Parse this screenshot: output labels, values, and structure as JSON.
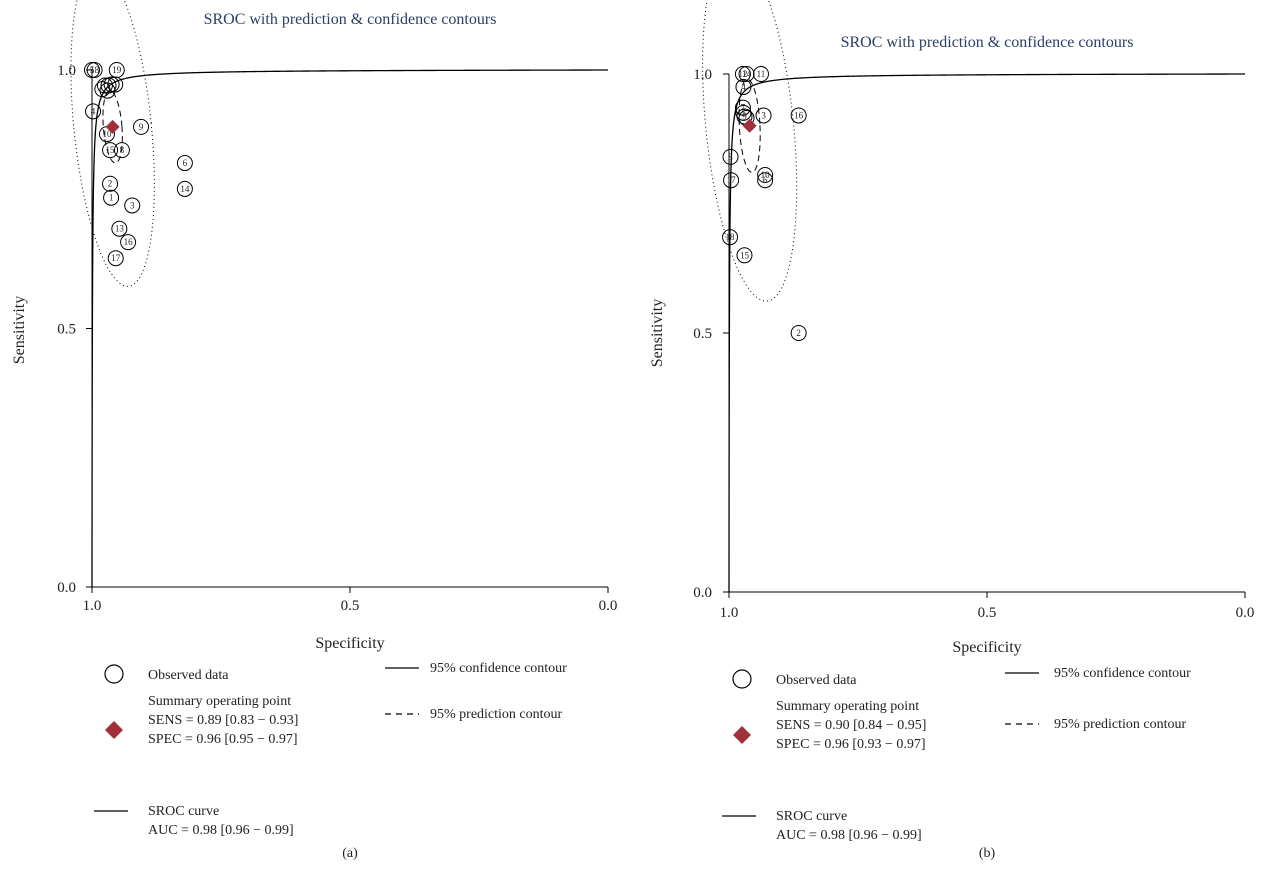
{
  "chart_data": [
    {
      "type": "scatter",
      "panel_label": "(a)",
      "title": "SROC with prediction & confidence contours",
      "xlabel": "Specificity",
      "ylabel": "Sensitivity",
      "xlim": [
        1.0,
        0.0
      ],
      "ylim": [
        0.0,
        1.0
      ],
      "x_ticks": [
        "1.0",
        "0.5",
        "0.0"
      ],
      "y_ticks": [
        "0.0",
        "0.5",
        "1.0"
      ],
      "grid": false,
      "legend_position": "bottom",
      "points": [
        {
          "id": "5",
          "spec": 1.0,
          "sens": 1.0
        },
        {
          "id": "18",
          "spec": 0.995,
          "sens": 1.0
        },
        {
          "id": "19",
          "spec": 0.952,
          "sens": 1.0
        },
        {
          "id": "",
          "spec": 0.98,
          "sens": 0.963
        },
        {
          "id": "",
          "spec": 0.975,
          "sens": 0.97
        },
        {
          "id": "",
          "spec": 0.968,
          "sens": 0.97
        },
        {
          "id": "",
          "spec": 0.962,
          "sens": 0.972
        },
        {
          "id": "",
          "spec": 0.955,
          "sens": 0.972
        },
        {
          "id": "",
          "spec": 0.97,
          "sens": 0.96
        },
        {
          "id": "4",
          "spec": 0.998,
          "sens": 0.92
        },
        {
          "id": "9",
          "spec": 0.905,
          "sens": 0.89
        },
        {
          "id": "10",
          "spec": 0.971,
          "sens": 0.876
        },
        {
          "id": "15",
          "spec": 0.965,
          "sens": 0.845
        },
        {
          "id": "8",
          "spec": 0.942,
          "sens": 0.845
        },
        {
          "id": "6",
          "spec": 0.82,
          "sens": 0.82
        },
        {
          "id": "2",
          "spec": 0.965,
          "sens": 0.78
        },
        {
          "id": "14",
          "spec": 0.82,
          "sens": 0.77
        },
        {
          "id": "1",
          "spec": 0.963,
          "sens": 0.753
        },
        {
          "id": "3",
          "spec": 0.922,
          "sens": 0.738
        },
        {
          "id": "13",
          "spec": 0.947,
          "sens": 0.693
        },
        {
          "id": "16",
          "spec": 0.93,
          "sens": 0.667
        },
        {
          "id": "17",
          "spec": 0.954,
          "sens": 0.636
        }
      ],
      "summary_point": {
        "spec": 0.96,
        "sens": 0.89
      },
      "legend": {
        "observed": "Observed data",
        "summary_title": "Summary operating point",
        "sens": "SENS = 0.89 [0.83 − 0.93]",
        "spec": "SPEC = 0.96 [0.95 − 0.97]",
        "sroc_title": "SROC curve",
        "auc": "AUC = 0.98 [0.96 − 0.99]",
        "confidence": "95% confidence contour",
        "prediction": "95% prediction contour"
      }
    },
    {
      "type": "scatter",
      "panel_label": "(b)",
      "title": "SROC with prediction & confidence contours",
      "xlabel": "Specificity",
      "ylabel": "Sensitivity",
      "xlim": [
        1.0,
        0.0
      ],
      "ylim": [
        0.0,
        1.0
      ],
      "x_ticks": [
        "1.0",
        "0.5",
        "0.0"
      ],
      "y_ticks": [
        "0.0",
        "0.5",
        "1.0"
      ],
      "grid": false,
      "legend_position": "bottom",
      "points": [
        {
          "id": "12",
          "spec": 0.973,
          "sens": 1.0
        },
        {
          "id": "14",
          "spec": 0.966,
          "sens": 1.0
        },
        {
          "id": "11",
          "spec": 0.938,
          "sens": 1.0
        },
        {
          "id": "4",
          "spec": 0.972,
          "sens": 0.975
        },
        {
          "id": "7",
          "spec": 0.973,
          "sens": 0.935
        },
        {
          "id": "5",
          "spec": 0.972,
          "sens": 0.925
        },
        {
          "id": "9",
          "spec": 0.97,
          "sens": 0.918
        },
        {
          "id": "",
          "spec": 0.966,
          "sens": 0.915
        },
        {
          "id": "3",
          "spec": 0.933,
          "sens": 0.92
        },
        {
          "id": "16",
          "spec": 0.865,
          "sens": 0.92
        },
        {
          "id": "8",
          "spec": 0.997,
          "sens": 0.84
        },
        {
          "id": "10",
          "spec": 0.93,
          "sens": 0.805
        },
        {
          "id": "6",
          "spec": 0.93,
          "sens": 0.795
        },
        {
          "id": "17",
          "spec": 0.996,
          "sens": 0.795
        },
        {
          "id": "18",
          "spec": 0.998,
          "sens": 0.685
        },
        {
          "id": "15",
          "spec": 0.97,
          "sens": 0.65
        },
        {
          "id": "2",
          "spec": 0.865,
          "sens": 0.5
        }
      ],
      "summary_point": {
        "spec": 0.96,
        "sens": 0.9
      },
      "legend": {
        "observed": "Observed data",
        "summary_title": "Summary operating point",
        "sens": "SENS = 0.90 [0.84 − 0.95]",
        "spec": "SPEC = 0.96 [0.93 − 0.97]",
        "sroc_title": "SROC curve",
        "auc": "AUC = 0.98 [0.96 − 0.99]",
        "confidence": "95% confidence contour",
        "prediction": "95% prediction contour"
      }
    }
  ],
  "colors": {
    "summary": "#a0303a",
    "title": "#2c3e66",
    "line": "#000000"
  }
}
